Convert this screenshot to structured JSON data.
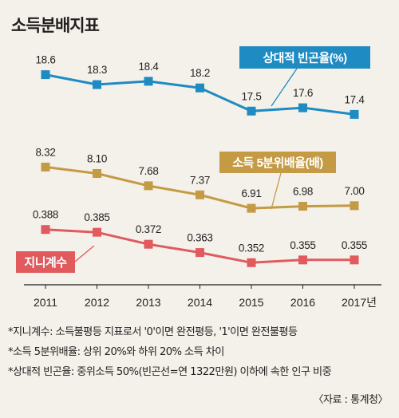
{
  "title": "소득분배지표",
  "chart_data": {
    "type": "line",
    "title": "소득분배지표",
    "x": [
      "2011",
      "2012",
      "2013",
      "2014",
      "2015",
      "2016",
      "2017"
    ],
    "x_tick_labels": [
      "2011",
      "2012",
      "2013",
      "2014",
      "2015",
      "2016",
      "2017년"
    ],
    "series": [
      {
        "name": "상대적 빈곤율(%)",
        "values": [
          18.6,
          18.3,
          18.4,
          18.2,
          17.5,
          17.6,
          17.4
        ],
        "labels": [
          "18.6",
          "18.3",
          "18.4",
          "18.2",
          "17.5",
          "17.6",
          "17.4"
        ],
        "color": "#1e8bc3",
        "range": [
          17.0,
          19.0
        ]
      },
      {
        "name": "소득 5분위배율(배)",
        "values": [
          8.32,
          8.1,
          7.68,
          7.37,
          6.91,
          6.98,
          7.0
        ],
        "labels": [
          "8.32",
          "8.10",
          "7.68",
          "7.37",
          "6.91",
          "6.98",
          "7.00"
        ],
        "color": "#c49a45",
        "range": [
          6.45,
          8.85
        ]
      },
      {
        "name": "지니계수",
        "values": [
          0.388,
          0.385,
          0.372,
          0.363,
          0.352,
          0.355,
          0.355
        ],
        "labels": [
          "0.388",
          "0.385",
          "0.372",
          "0.363",
          "0.352",
          "0.355",
          "0.355"
        ],
        "color": "#e05a5e",
        "range": [
          0.341,
          0.399
        ]
      }
    ],
    "grid": false,
    "legend": "callout labels beside each line"
  },
  "notes": [
    "*지니계수: 소득불평등 지표로서 '0'이면 완전평등, '1'이면 완전불평등",
    "*소득 5분위배율: 상위 20%와 하위 20% 소득 차이",
    "*상대적 빈곤율: 중위소득 50%(빈곤선=연 1322만원) 이하에 속한 인구 비중"
  ],
  "source": "〈자료 : 통계청〉"
}
